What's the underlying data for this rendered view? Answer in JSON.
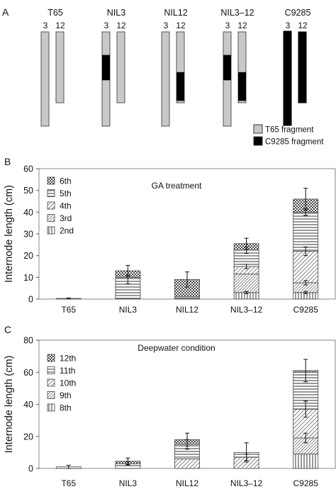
{
  "panel_a": {
    "letter": "A",
    "chromosome_labels": [
      "3",
      "12"
    ],
    "genotypes": [
      {
        "name": "T65",
        "c3": [],
        "c12": [],
        "all_black": false
      },
      {
        "name": "NIL3",
        "c3": [
          [
            0.245,
            0.513
          ]
        ],
        "c12": [],
        "all_black": false
      },
      {
        "name": "NIL12",
        "c3": [],
        "c12": [
          [
            0.568,
            0.973
          ]
        ],
        "all_black": false
      },
      {
        "name": "NIL3–12",
        "c3": [
          [
            0.245,
            0.513
          ]
        ],
        "c12": [
          [
            0.568,
            0.973
          ]
        ],
        "all_black": false
      },
      {
        "name": "C9285",
        "c3": [],
        "c12": [],
        "all_black": true
      }
    ],
    "legend": [
      {
        "label": "T65 fragment",
        "color": "#c8c8c8"
      },
      {
        "label": "C9285 fragment",
        "color": "#000000"
      }
    ]
  },
  "chart_data": [
    {
      "type": "bar",
      "stacked": true,
      "panel": "B",
      "title": "GA treatment",
      "xlabel": "",
      "ylabel": "Internode length (cm)",
      "ylim": [
        0,
        60
      ],
      "yticks": [
        0,
        10,
        20,
        30,
        40,
        50,
        60
      ],
      "categories": [
        "T65",
        "NIL3",
        "NIL12",
        "NIL3–12",
        "C9285"
      ],
      "series": [
        {
          "name": "2nd",
          "values": [
            0,
            0,
            0,
            3,
            3
          ]
        },
        {
          "name": "3rd",
          "values": [
            0,
            0,
            0,
            8.5,
            4.5
          ]
        },
        {
          "name": "4th",
          "values": [
            0,
            0,
            0,
            3.5,
            14.5
          ]
        },
        {
          "name": "5th",
          "values": [
            0.3,
            10,
            1,
            7.5,
            18
          ]
        },
        {
          "name": "6th",
          "values": [
            0,
            3,
            8,
            3,
            6
          ]
        }
      ],
      "error_bars": [
        {
          "category": "T65",
          "tops": [
            {
              "value": 0.3,
              "err": 0.2
            }
          ]
        },
        {
          "category": "NIL3",
          "tops": [
            {
              "value": 13,
              "err": 2.5
            },
            {
              "value": 9,
              "err": 2
            }
          ]
        },
        {
          "category": "NIL12",
          "tops": [
            {
              "value": 9,
              "err": 3.5
            }
          ]
        },
        {
          "category": "NIL3–12",
          "tops": [
            {
              "value": 25.5,
              "err": 2.5
            },
            {
              "value": 22.5,
              "err": 1.5
            },
            {
              "value": 15,
              "err": 1
            },
            {
              "value": 3,
              "err": 0.5
            }
          ]
        },
        {
          "category": "C9285",
          "tops": [
            {
              "value": 46,
              "err": 5
            },
            {
              "value": 40,
              "err": 1.5
            },
            {
              "value": 22,
              "err": 2
            },
            {
              "value": 7.5,
              "err": 1
            },
            {
              "value": 3,
              "err": 0.5
            }
          ]
        }
      ],
      "legend_position": "top-left"
    },
    {
      "type": "bar",
      "stacked": true,
      "panel": "C",
      "title": "Deepwater condition",
      "xlabel": "",
      "ylabel": "Internode length (cm)",
      "ylim": [
        0,
        80
      ],
      "yticks": [
        0,
        20,
        40,
        60,
        80
      ],
      "categories": [
        "T65",
        "NIL3",
        "NIL12",
        "NIL3–12",
        "C9285"
      ],
      "series": [
        {
          "name": "8th",
          "values": [
            0,
            0,
            0,
            0,
            9
          ]
        },
        {
          "name": "9th",
          "values": [
            0,
            0,
            0,
            0,
            10
          ]
        },
        {
          "name": "10th",
          "values": [
            0,
            0,
            6,
            7,
            18
          ]
        },
        {
          "name": "11th",
          "values": [
            1,
            3,
            9,
            3,
            23
          ]
        },
        {
          "name": "12th",
          "values": [
            0,
            1.5,
            3,
            0,
            1
          ]
        }
      ],
      "error_bars": [
        {
          "category": "T65",
          "tops": [
            {
              "value": 1,
              "err": 1
            }
          ]
        },
        {
          "category": "NIL3",
          "tops": [
            {
              "value": 4.5,
              "err": 2
            },
            {
              "value": 3,
              "err": 1
            }
          ]
        },
        {
          "category": "NIL12",
          "tops": [
            {
              "value": 18,
              "err": 4
            },
            {
              "value": 15,
              "err": 3
            }
          ]
        },
        {
          "category": "NIL3–12",
          "tops": [
            {
              "value": 10,
              "err": 6
            },
            {
              "value": 7,
              "err": 2
            }
          ]
        },
        {
          "category": "C9285",
          "tops": [
            {
              "value": 61,
              "err": 7
            },
            {
              "value": 37,
              "err": 5
            },
            {
              "value": 19,
              "err": 3
            }
          ]
        }
      ],
      "legend_position": "top-left"
    }
  ]
}
